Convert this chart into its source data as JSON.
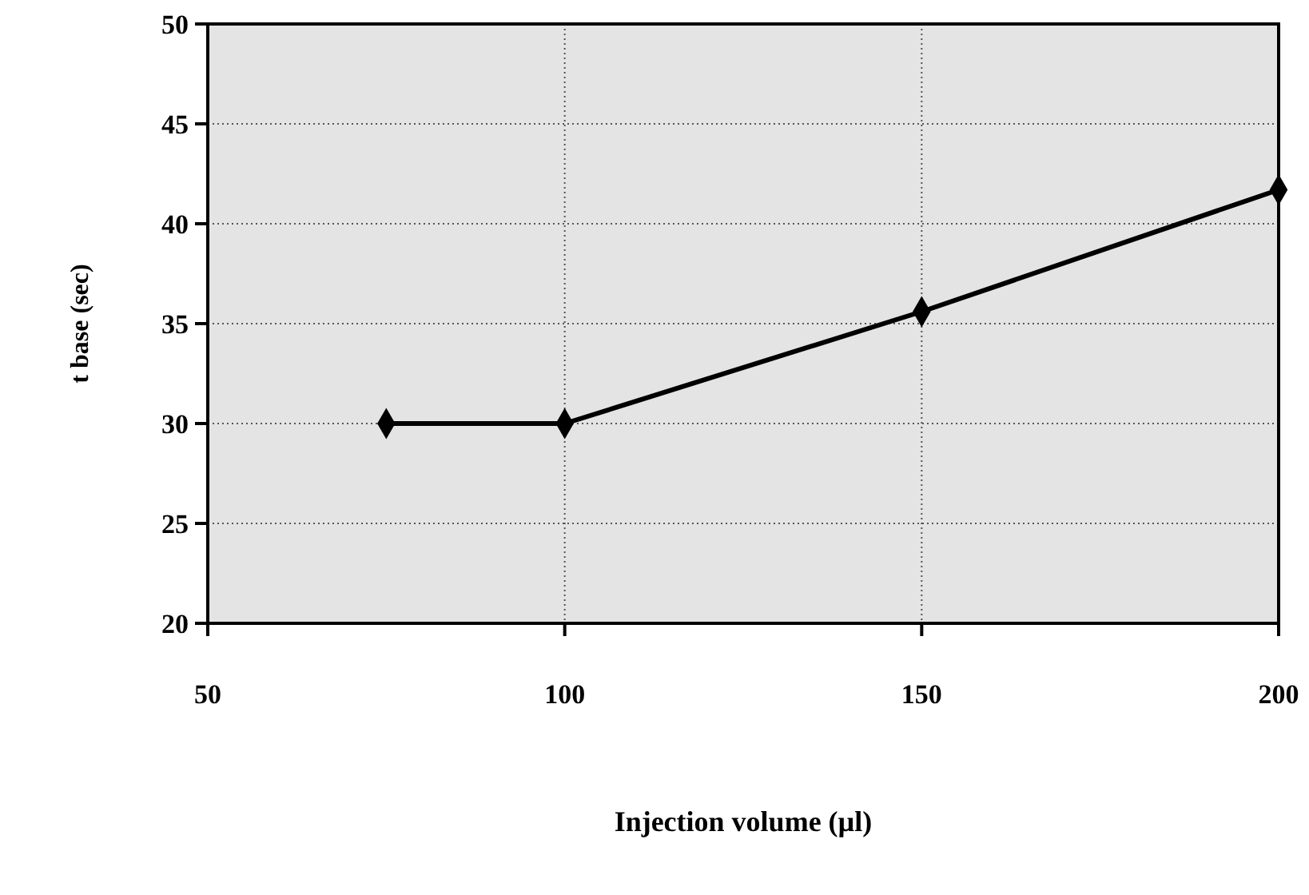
{
  "chart_data": {
    "type": "line",
    "xlabel": "Injection volume (µl)",
    "ylabel": "t base (sec)",
    "x": [
      75,
      100,
      150,
      200
    ],
    "series": [
      {
        "color": "#000000",
        "values": [
          30,
          30,
          35.6,
          41.7
        ]
      }
    ],
    "xlim": [
      50,
      200
    ],
    "xticks": [
      50,
      100,
      150,
      200
    ],
    "ylim": [
      20,
      50
    ],
    "yticks": [
      20,
      25,
      30,
      35,
      40,
      45,
      50
    ],
    "grid": true,
    "marker": "diamond",
    "line_style": "solid"
  }
}
